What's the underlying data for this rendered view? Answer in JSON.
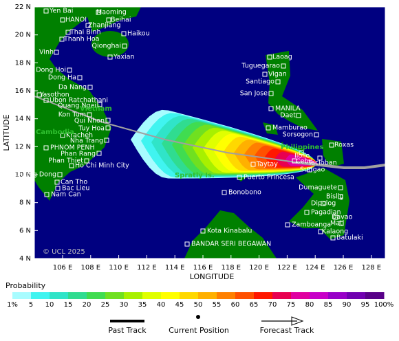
{
  "map": {
    "y_axis_label": "LATITUDE",
    "x_axis_label": "LONGITUDE",
    "lat_ticks": [
      {
        "value": 22,
        "label": "22 N"
      },
      {
        "value": 20,
        "label": "20 N"
      },
      {
        "value": 18,
        "label": "18 N"
      },
      {
        "value": 16,
        "label": "16 N"
      },
      {
        "value": 14,
        "label": "14 N"
      },
      {
        "value": 12,
        "label": "12 N"
      },
      {
        "value": 10,
        "label": "10 N"
      },
      {
        "value": 8,
        "label": "8 N"
      },
      {
        "value": 6,
        "label": "6 N"
      },
      {
        "value": 4,
        "label": "4 N"
      }
    ],
    "lon_ticks": [
      {
        "value": 106,
        "label": "106 E"
      },
      {
        "value": 108,
        "label": "108 E"
      },
      {
        "value": 110,
        "label": "110 E"
      },
      {
        "value": 112,
        "label": "112 E"
      },
      {
        "value": 114,
        "label": "114 E"
      },
      {
        "value": 116,
        "label": "116 E"
      },
      {
        "value": 118,
        "label": "118 E"
      },
      {
        "value": 120,
        "label": "120 E"
      },
      {
        "value": 122,
        "label": "122 E"
      },
      {
        "value": 124,
        "label": "124 E"
      },
      {
        "value": 126,
        "label": "126 E"
      },
      {
        "value": 128,
        "label": "128 E"
      }
    ],
    "cities": [
      "Yen Bai",
      "HANOI",
      "Maoming",
      "Beihai",
      "Zhanjiang",
      "Thai Binh",
      "Haikou",
      "Thanh Hoa",
      "Qionghai",
      "Vinh",
      "Yaxian",
      "Dong Hoi",
      "Dong Ha",
      "Da Nang",
      "Yasothon",
      "Ubon Ratchathani",
      "Quang Ngai",
      "Kon Tum",
      "Qui Nhon",
      "Tuy Hoa",
      "Kracheh",
      "Nha Trang",
      "PHNOM PENH",
      "Phan Rang",
      "Phan Thiet",
      "Ho Chi Minh City",
      "Duong Dong",
      "Can Tho",
      "Bac Lieu",
      "Nam Can",
      "Laoag",
      "Tuguegarao",
      "Vigan",
      "Santiago",
      "San Jose",
      "MANILA",
      "Daet",
      "Mamburao",
      "Sorsogon",
      "Roxas",
      "Iloilo",
      "Tacloban",
      "Taytay",
      "Cebu",
      "Surigao",
      "Puerto Princesa",
      "Dumaguete",
      "Bonobono",
      "Dipolog",
      "Bislig",
      "Pagadian",
      "Davao",
      "Zamboanga",
      "Mati",
      "Kota Kinabalu",
      "Kalaong",
      "Batulaki",
      "BANDAR SERI BEGAWAN"
    ],
    "regions": [
      "Vietnam",
      "Cambodia",
      "Philippines",
      "Spratly Is."
    ],
    "copyright": "© UCL 2025"
  },
  "legend": {
    "title": "Probability",
    "items": [
      {
        "label": "1%",
        "color": "#a8fcff"
      },
      {
        "label": "5",
        "color": "#40f4f0"
      },
      {
        "label": "10",
        "color": "#30e4c8"
      },
      {
        "label": "15",
        "color": "#30dc90"
      },
      {
        "label": "20",
        "color": "#40dc50"
      },
      {
        "label": "25",
        "color": "#70e020"
      },
      {
        "label": "30",
        "color": "#a8f000"
      },
      {
        "label": "35",
        "color": "#e0ff00"
      },
      {
        "label": "40",
        "color": "#ffff00"
      },
      {
        "label": "45",
        "color": "#ffd800"
      },
      {
        "label": "50",
        "color": "#ffb000"
      },
      {
        "label": "55",
        "color": "#ff8000"
      },
      {
        "label": "60",
        "color": "#ff5000"
      },
      {
        "label": "65",
        "color": "#ff1800"
      },
      {
        "label": "70",
        "color": "#e80050"
      },
      {
        "label": "75",
        "color": "#e000a0"
      },
      {
        "label": "80",
        "color": "#c800c8"
      },
      {
        "label": "85",
        "color": "#9800c8"
      },
      {
        "label": "90",
        "color": "#7000b0"
      },
      {
        "label": "95",
        "color": "#580088"
      },
      {
        "label": "100%",
        "color": "#580060"
      }
    ],
    "symbols": [
      "Past Track",
      "Current Position",
      "Forecast Track"
    ]
  }
}
